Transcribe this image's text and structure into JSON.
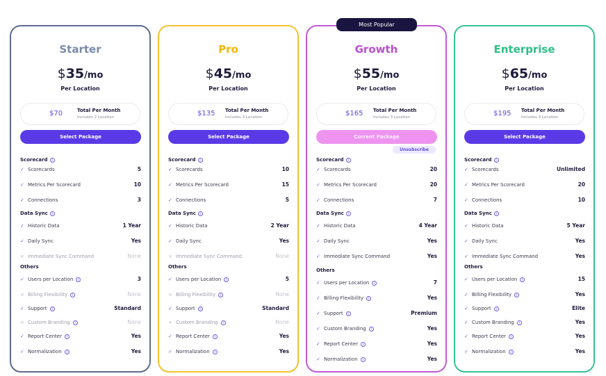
{
  "badge_most_popular": "Most Popular",
  "common": {
    "per_location": "Per Location",
    "total_label": "Total Per Month",
    "info_glyph": "i",
    "check_icon": "check-icon",
    "cross_icon": "cross-icon",
    "sections": {
      "scorecard": "Scorecard",
      "data_sync": "Data Sync",
      "others": "Others"
    }
  },
  "plans": [
    {
      "name": "Starter",
      "color": "#7a8aa8",
      "price": "35",
      "total": "$70",
      "includes": "Includes 2 Location",
      "button": "Select Package",
      "rows": [
        [
          "Scorecards",
          "5",
          true
        ],
        [
          "Metrics Per Scorecard",
          "10",
          true
        ],
        [
          "Connections",
          "3",
          true
        ],
        [
          "Historic Data",
          "1 Year",
          true
        ],
        [
          "Daily Sync",
          "Yes",
          true
        ],
        [
          "Immediate Sync Command",
          "None",
          false
        ],
        [
          "Users per Location",
          "3",
          true
        ],
        [
          "Billing Flexibility",
          "None",
          false
        ],
        [
          "Support",
          "Standard",
          true
        ],
        [
          "Custom Branding",
          "None",
          false
        ],
        [
          "Report Center",
          "Yes",
          true
        ],
        [
          "Normalization",
          "Yes",
          true
        ]
      ]
    },
    {
      "name": "Pro",
      "color": "#f2b705",
      "price": "45",
      "total": "$135",
      "includes": "Includes 3 Location",
      "button": "Select Package",
      "rows": [
        [
          "Scorecards",
          "10",
          true
        ],
        [
          "Metrics Per Scorecard",
          "15",
          true
        ],
        [
          "Connections",
          "5",
          true
        ],
        [
          "Historic Data",
          "2 Year",
          true
        ],
        [
          "Daily Sync",
          "Yes",
          true
        ],
        [
          "Immediate Sync Command",
          "None",
          false
        ],
        [
          "Users per Location",
          "5",
          true
        ],
        [
          "Billing Flexibility",
          "None",
          false
        ],
        [
          "Support",
          "Standard",
          true
        ],
        [
          "Custom Branding",
          "None",
          false
        ],
        [
          "Report Center",
          "Yes",
          true
        ],
        [
          "Normalization",
          "Yes",
          true
        ]
      ]
    },
    {
      "name": "Growth",
      "color": "#b84fd0",
      "price": "55",
      "total": "$165",
      "includes": "Includes 3 Location",
      "button": "Current Package",
      "unsubscribe": "Unsubscribe",
      "rows": [
        [
          "Scorecards",
          "20",
          true
        ],
        [
          "Metrics Per Scorecard",
          "20",
          true
        ],
        [
          "Connections",
          "7",
          true
        ],
        [
          "Historic Data",
          "4 Year",
          true
        ],
        [
          "Daily Sync",
          "Yes",
          true
        ],
        [
          "Immediate Sync Command",
          "Yes",
          true
        ],
        [
          "Users per Location",
          "7",
          true
        ],
        [
          "Billing Flexibility",
          "Yes",
          true
        ],
        [
          "Support",
          "Premium",
          true
        ],
        [
          "Custom Branding",
          "Yes",
          true
        ],
        [
          "Report Center",
          "Yes",
          true
        ],
        [
          "Normalization",
          "Yes",
          true
        ]
      ]
    },
    {
      "name": "Enterprise",
      "color": "#2fbf88",
      "price": "65",
      "total": "$195",
      "includes": "Includes 3 Location",
      "button": "Select Package",
      "rows": [
        [
          "Scorecards",
          "Unlimited",
          true
        ],
        [
          "Metrics Per Scorecard",
          "20",
          true
        ],
        [
          "Connections",
          "10",
          true
        ],
        [
          "Historic Data",
          "5 Year",
          true
        ],
        [
          "Daily Sync",
          "Yes",
          true
        ],
        [
          "Immediate Sync Command",
          "Yes",
          true
        ],
        [
          "Users per Location",
          "15",
          true
        ],
        [
          "Billing Flexibility",
          "Yes",
          true
        ],
        [
          "Support",
          "Elite",
          true
        ],
        [
          "Custom Branding",
          "Yes",
          true
        ],
        [
          "Report Center",
          "Yes",
          true
        ],
        [
          "Normalization",
          "Yes",
          true
        ]
      ]
    }
  ],
  "info_rows": [
    "Users per Location",
    "Billing Flexibility",
    "Support",
    "Custom Branding",
    "Report Center",
    "Normalization"
  ]
}
